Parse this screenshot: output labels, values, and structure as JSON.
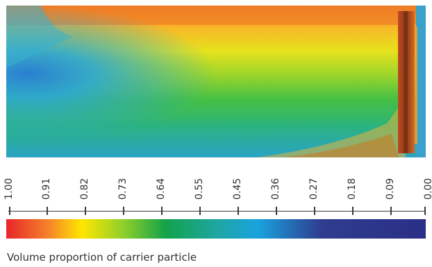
{
  "legend": {
    "caption": "Volume proportion of carrier particle",
    "ticks": [
      "1.00",
      "0.91",
      "0.82",
      "0.73",
      "0.64",
      "0.55",
      "0.45",
      "0.36",
      "0.27",
      "0.18",
      "0.09",
      "0.00"
    ],
    "gradient_colors": [
      "#e8262a",
      "#f5822a",
      "#ffe600",
      "#8fcf2a",
      "#13a24a",
      "#1fa6a0",
      "#19a3de",
      "#2f3d8f",
      "#2a2f86"
    ]
  }
}
